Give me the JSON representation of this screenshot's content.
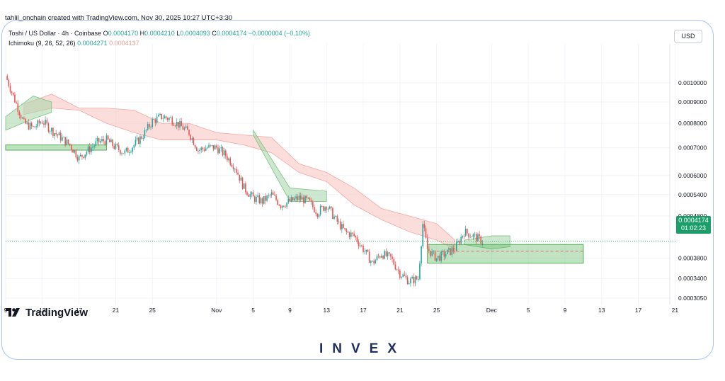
{
  "credit": "tahlil_onchain created with TradingView.com, Nov 30, 2025 10:27 UTC+3:30",
  "legend": {
    "symbol": "Toshi / US Dollar · 4h · Coinbase",
    "o_label": "O",
    "o_val": "0.0004170",
    "h_label": "H",
    "h_val": "0.0004210",
    "l_label": "L",
    "l_val": "0.0004093",
    "c_label": "C",
    "c_val": "0.0004174",
    "change": "−0.0000004 (−0.10%)",
    "indicator": "Ichimoku (9, 26, 52, 26)",
    "span_a": "0.0004271",
    "span_b": "0.0004137"
  },
  "currency": "USD",
  "price_tag": {
    "price": "0.0004174",
    "countdown": "01:02:23"
  },
  "brand": "TradingView",
  "watermark": "INVEX",
  "colors": {
    "up": "#26a69a",
    "down": "#ef5350",
    "cloud_bull": "#a5d6a7",
    "cloud_bear": "#f8c2c0",
    "zone": "#4caf50",
    "tag": "#1b9e6a"
  },
  "chart_data": {
    "type": "candlestick",
    "y_scale": "log",
    "y_ticks": [
      "0.0010000",
      "0.0009000",
      "0.0008000",
      "0.0007000",
      "0.0006000",
      "0.0005400",
      "0.0004800",
      "0.0003800",
      "0.0003400",
      "0.0003050"
    ],
    "x_ticks": [
      "9",
      "13",
      "17",
      "21",
      "25",
      "Nov",
      "5",
      "9",
      "13",
      "17",
      "21",
      "25",
      "Dec",
      "5",
      "9",
      "13",
      "17",
      "21"
    ],
    "price_path": [
      [
        "2025-10-09",
        0.00104
      ],
      [
        "2025-10-10",
        0.00091
      ],
      [
        "2025-10-11",
        0.0008
      ],
      [
        "2025-10-12",
        0.00078
      ],
      [
        "2025-10-13",
        0.00081
      ],
      [
        "2025-10-14",
        0.00077
      ],
      [
        "2025-10-15",
        0.00074
      ],
      [
        "2025-10-16",
        0.00071
      ],
      [
        "2025-10-17",
        0.00066
      ],
      [
        "2025-10-18",
        0.00069
      ],
      [
        "2025-10-19",
        0.00072
      ],
      [
        "2025-10-20",
        0.00073
      ],
      [
        "2025-10-21",
        0.0007
      ],
      [
        "2025-10-22",
        0.00068
      ],
      [
        "2025-10-23",
        0.00071
      ],
      [
        "2025-10-24",
        0.00075
      ],
      [
        "2025-10-25",
        0.00081
      ],
      [
        "2025-10-26",
        0.00083
      ],
      [
        "2025-10-27",
        0.00082
      ],
      [
        "2025-10-28",
        0.00079
      ],
      [
        "2025-10-29",
        0.00076
      ],
      [
        "2025-10-30",
        0.00069
      ],
      [
        "2025-10-31",
        0.0007
      ],
      [
        "2025-11-01",
        0.0007
      ],
      [
        "2025-11-02",
        0.00067
      ],
      [
        "2025-11-03",
        0.00063
      ],
      [
        "2025-11-04",
        0.00056
      ],
      [
        "2025-11-05",
        0.00053
      ],
      [
        "2025-11-06",
        0.00052
      ],
      [
        "2025-11-07",
        0.00054
      ],
      [
        "2025-11-08",
        0.00051
      ],
      [
        "2025-11-09",
        0.00052
      ],
      [
        "2025-11-10",
        0.00053
      ],
      [
        "2025-11-11",
        0.00052
      ],
      [
        "2025-11-12",
        0.00049
      ],
      [
        "2025-11-13",
        0.00051
      ],
      [
        "2025-11-14",
        0.00047
      ],
      [
        "2025-11-15",
        0.00044
      ],
      [
        "2025-11-16",
        0.00043
      ],
      [
        "2025-11-17",
        0.0004
      ],
      [
        "2025-11-18",
        0.00037
      ],
      [
        "2025-11-19",
        0.00039
      ],
      [
        "2025-11-20",
        0.00038
      ],
      [
        "2025-11-21",
        0.00035
      ],
      [
        "2025-11-22",
        0.000335
      ],
      [
        "2025-11-23",
        0.00034
      ],
      [
        "2025-11-23T12:00",
        0.00046
      ],
      [
        "2025-11-24",
        0.0004
      ],
      [
        "2025-11-25",
        0.00038
      ],
      [
        "2025-11-26",
        0.00039
      ],
      [
        "2025-11-27",
        0.0004
      ],
      [
        "2025-11-28",
        0.00044
      ],
      [
        "2025-11-29",
        0.00043
      ],
      [
        "2025-11-30",
        0.0004174
      ]
    ],
    "cloud_bear": [
      [
        "2025-10-11",
        0.00084,
        0.00089
      ],
      [
        "2025-10-14",
        0.00087,
        0.00094
      ],
      [
        "2025-10-17",
        0.00086,
        0.00087
      ],
      [
        "2025-10-20",
        0.0008,
        0.00087
      ],
      [
        "2025-10-23",
        0.00076,
        0.00086
      ],
      [
        "2025-10-26",
        0.00073,
        0.0008
      ],
      [
        "2025-10-29",
        0.00073,
        0.0008
      ],
      [
        "2025-11-01",
        0.00073,
        0.00076
      ],
      [
        "2025-11-04",
        0.00071,
        0.00075
      ],
      [
        "2025-11-07",
        0.00068,
        0.00074
      ],
      [
        "2025-11-10",
        0.00061,
        0.00064
      ],
      [
        "2025-11-13",
        0.00058,
        0.00061
      ],
      [
        "2025-11-16",
        0.00051,
        0.00056
      ],
      [
        "2025-11-19",
        0.00047,
        0.0005
      ],
      [
        "2025-11-22",
        0.00044,
        0.00048
      ],
      [
        "2025-11-25",
        0.00042,
        0.00046
      ],
      [
        "2025-11-27",
        0.0004,
        0.00042
      ]
    ],
    "cloud_bull": [
      [
        "2025-10-09",
        0.00077,
        0.00083
      ],
      [
        "2025-10-12",
        0.00082,
        0.00093
      ],
      [
        "2025-10-14",
        0.00085,
        0.0009
      ],
      [
        "2025-11-05",
        0.00075,
        0.00077
      ],
      [
        "2025-11-09",
        0.00052,
        0.00056
      ],
      [
        "2025-11-13",
        0.00052,
        0.00055
      ],
      [
        "2025-11-28",
        0.00041,
        0.00042
      ],
      [
        "2025-12-01",
        0.0004,
        0.00043
      ],
      [
        "2025-12-03",
        0.000405,
        0.00043
      ]
    ],
    "support_zones": [
      {
        "from": "2025-10-09",
        "to": "2025-10-20",
        "low": 0.00069,
        "high": 0.00071
      },
      {
        "from": "2025-11-24",
        "to": "2025-12-11",
        "low": 0.00037,
        "high": 0.00041
      }
    ],
    "dashed_level": 0.000395,
    "last_price": 0.0004174
  }
}
